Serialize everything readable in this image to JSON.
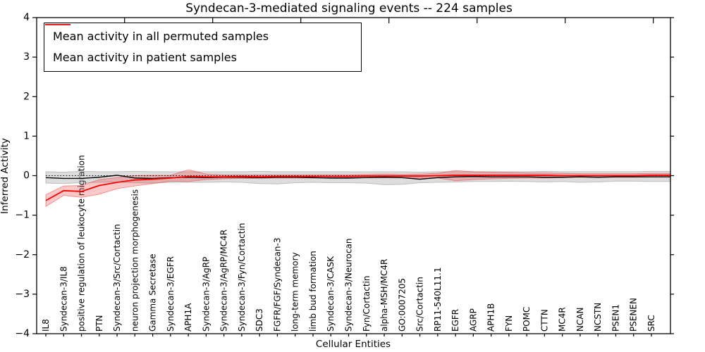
{
  "chart_data": {
    "type": "line",
    "title": "Syndecan-3-mediated signaling events -- 224 samples",
    "xlabel": "Cellular Entities",
    "ylabel": "Inferred Activity",
    "ylim": [
      -4,
      4
    ],
    "yticks": [
      4,
      3,
      2,
      1,
      0,
      -1,
      -2,
      -3,
      -4
    ],
    "grid": false,
    "legend_position": "upper left",
    "zero_line": {
      "style": "dotted",
      "value": 0,
      "color": "#000000"
    },
    "categories": [
      "IL8",
      "Syndecan-3/IL8",
      "positive regulation of leukocyte migration",
      "PTN",
      "Syndecan-3/Src/Cortactin",
      "neuron projection morphogenesis",
      "Gamma Secretase",
      "Syndecan-3/EGFR",
      "APH1A",
      "Syndecan-3/AgRP",
      "Syndecan-3/AgRP/MC4R",
      "Syndecan-3/Fyn/Cortactin",
      "SDC3",
      "FGFR/FGF/Syndecan-3",
      "long-term memory",
      "limb bud formation",
      "Syndecan-3/CASK",
      "Syndecan-3/Neurocan",
      "Fyn/Cortactin",
      "alpha-MSH/MC4R",
      "GO:0007205",
      "Src/Cortactin",
      "RP11-540L11.1",
      "EGFR",
      "AGRP",
      "APH1B",
      "FYN",
      "POMC",
      "CTTN",
      "MC4R",
      "NCAN",
      "NCSTN",
      "PSEN1",
      "PSENEN",
      "SRC"
    ],
    "series": [
      {
        "name": "Mean activity in all permuted samples",
        "color": "#000000",
        "band_color": "#999999",
        "values": [
          -0.05,
          -0.07,
          -0.07,
          -0.04,
          0.01,
          -0.06,
          -0.07,
          -0.05,
          -0.04,
          -0.05,
          -0.04,
          -0.04,
          -0.05,
          -0.04,
          -0.04,
          -0.05,
          -0.06,
          -0.06,
          -0.05,
          -0.04,
          -0.05,
          -0.09,
          -0.05,
          -0.03,
          -0.02,
          -0.03,
          -0.03,
          -0.03,
          -0.04,
          -0.04,
          -0.03,
          -0.04,
          -0.03,
          -0.03,
          -0.03
        ],
        "band_upper": [
          0.1,
          0.09,
          0.11,
          0.1,
          0.1,
          0.11,
          0.1,
          0.1,
          0.1,
          0.1,
          0.1,
          0.1,
          0.11,
          0.1,
          0.1,
          0.1,
          0.1,
          0.1,
          0.1,
          0.1,
          0.1,
          0.09,
          0.1,
          0.1,
          0.1,
          0.1,
          0.1,
          0.1,
          0.11,
          0.1,
          0.1,
          0.1,
          0.1,
          0.1,
          0.11
        ],
        "band_lower": [
          -0.19,
          -0.2,
          -0.18,
          -0.17,
          -0.16,
          -0.18,
          -0.19,
          -0.17,
          -0.17,
          -0.17,
          -0.16,
          -0.17,
          -0.2,
          -0.21,
          -0.18,
          -0.17,
          -0.18,
          -0.18,
          -0.19,
          -0.23,
          -0.22,
          -0.18,
          -0.17,
          -0.16,
          -0.15,
          -0.15,
          -0.14,
          -0.15,
          -0.16,
          -0.15,
          -0.17,
          -0.16,
          -0.14,
          -0.14,
          -0.15
        ]
      },
      {
        "name": "Mean activity in patient samples",
        "color": "#ff0000",
        "band_color": "#ee3333",
        "values": [
          -0.63,
          -0.38,
          -0.4,
          -0.25,
          -0.17,
          -0.11,
          -0.09,
          -0.06,
          -0.02,
          -0.03,
          -0.03,
          -0.02,
          -0.03,
          -0.02,
          -0.02,
          -0.02,
          -0.02,
          -0.02,
          -0.01,
          -0.01,
          -0.01,
          -0.01,
          0.0,
          0.01,
          0.01,
          0.01,
          0.01,
          0.01,
          0.01,
          0.0,
          0.0,
          0.0,
          0.0,
          0.0,
          0.01
        ],
        "band_upper": [
          -0.48,
          -0.26,
          -0.25,
          -0.1,
          -0.05,
          0.0,
          0.01,
          0.01,
          0.15,
          0.04,
          0.02,
          0.02,
          0.02,
          0.02,
          0.02,
          0.02,
          0.02,
          0.02,
          0.03,
          0.04,
          0.03,
          0.04,
          0.06,
          0.13,
          0.1,
          0.09,
          0.08,
          0.07,
          0.07,
          0.06,
          0.05,
          0.05,
          0.05,
          0.05,
          0.06
        ],
        "band_lower": [
          -0.78,
          -0.5,
          -0.55,
          -0.47,
          -0.33,
          -0.26,
          -0.2,
          -0.14,
          -0.15,
          -0.1,
          -0.08,
          -0.07,
          -0.07,
          -0.06,
          -0.06,
          -0.06,
          -0.06,
          -0.05,
          -0.05,
          -0.05,
          -0.05,
          -0.06,
          -0.06,
          -0.13,
          -0.1,
          -0.08,
          -0.07,
          -0.06,
          -0.06,
          -0.05,
          -0.04,
          -0.04,
          -0.04,
          -0.04,
          -0.03
        ]
      }
    ]
  }
}
